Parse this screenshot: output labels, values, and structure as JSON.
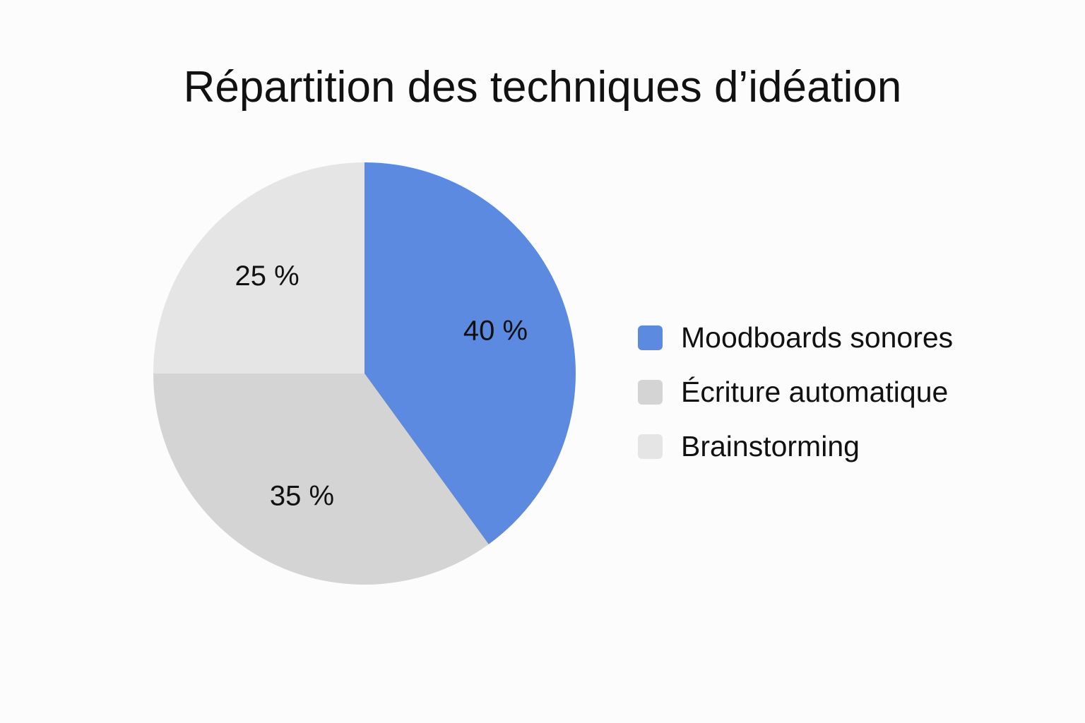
{
  "chart_data": {
    "type": "pie",
    "title": "Répartition des techniques d’idéation",
    "slices": [
      {
        "label": "Moodboards sonores",
        "value": 40,
        "value_label": "40 %",
        "color": "#5b8ae0"
      },
      {
        "label": "Écriture automatique",
        "value": 35,
        "value_label": "35 %",
        "color": "#d4d4d4"
      },
      {
        "label": "Brainstorming",
        "value": 25,
        "value_label": "25 %",
        "color": "#e5e5e5"
      }
    ],
    "legend_position": "right",
    "start_angle_deg": 0,
    "direction": "clockwise"
  }
}
